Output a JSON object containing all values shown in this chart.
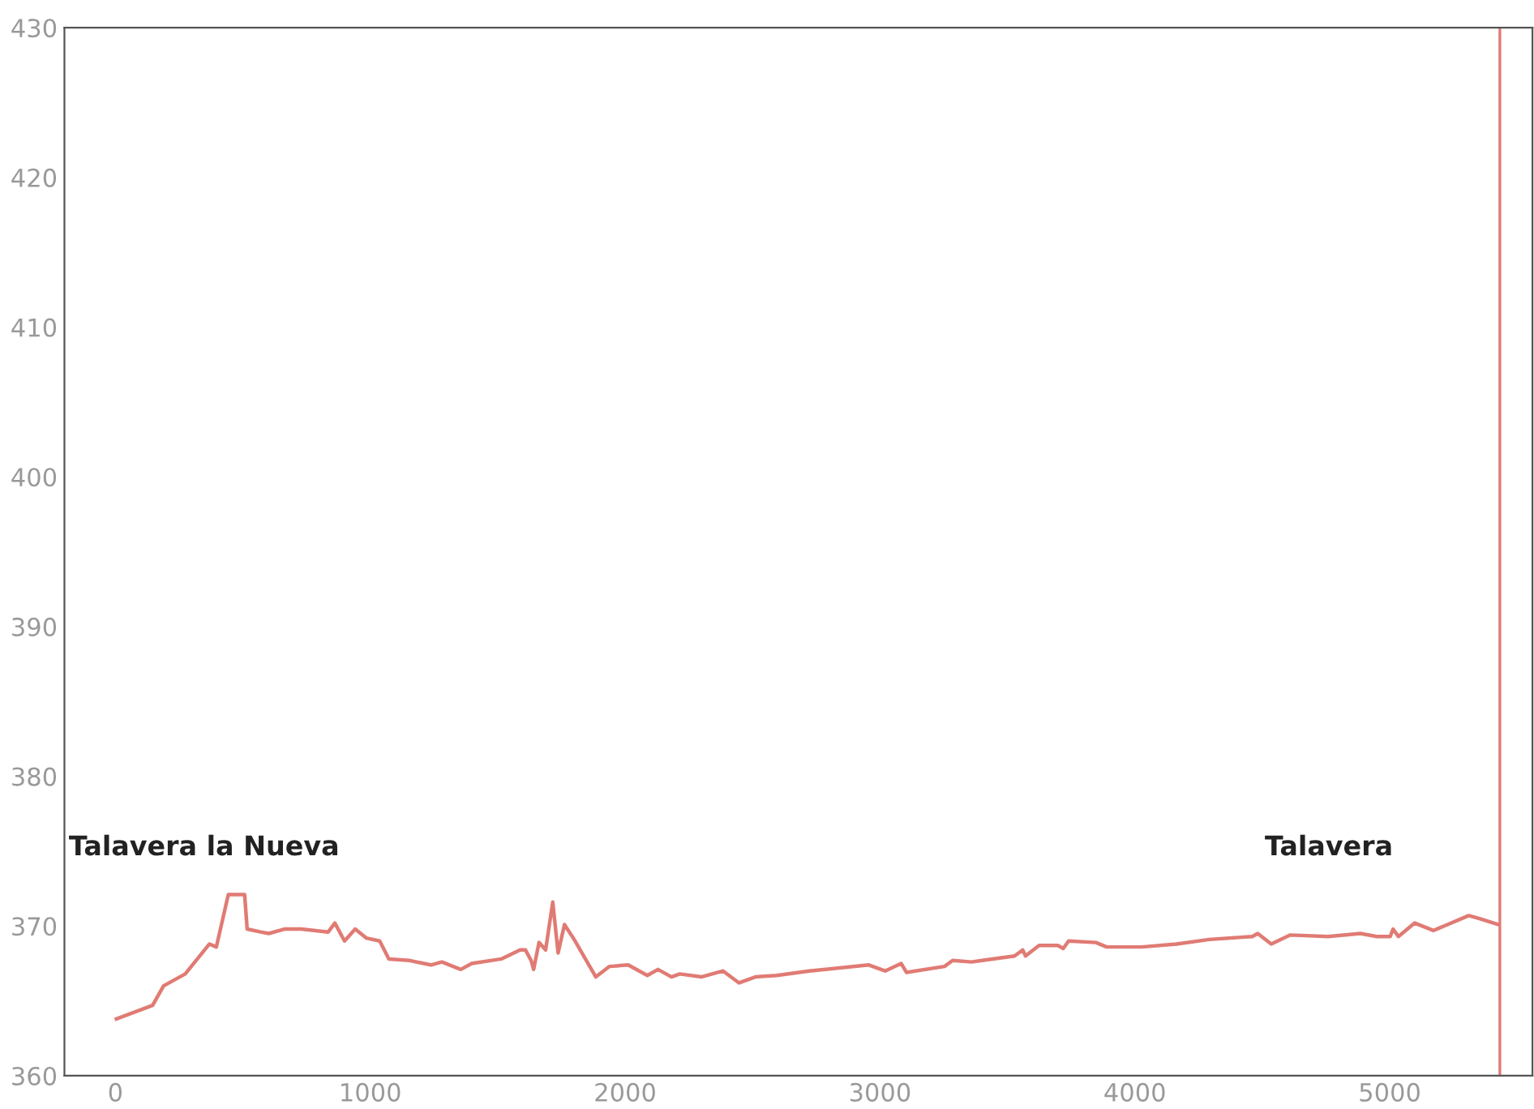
{
  "chart_data": {
    "type": "line",
    "x": [
      4,
      146,
      189,
      274,
      369,
      396,
      443,
      507,
      517,
      570,
      602,
      666,
      729,
      835,
      861,
      899,
      941,
      984,
      1037,
      1073,
      1153,
      1238,
      1281,
      1355,
      1398,
      1514,
      1588,
      1609,
      1631,
      1641,
      1662,
      1688,
      1716,
      1737,
      1762,
      1800,
      1885,
      1938,
      2012,
      2087,
      2129,
      2182,
      2214,
      2299,
      2384,
      2447,
      2511,
      2595,
      2723,
      2956,
      3020,
      3083,
      3104,
      3253,
      3285,
      3359,
      3401,
      3528,
      3560,
      3571,
      3624,
      3698,
      3719,
      3740,
      3847,
      3889,
      4027,
      4164,
      4292,
      4461,
      4482,
      4535,
      4610,
      4758,
      4885,
      4949,
      5002,
      5013,
      5034,
      5098,
      5172,
      5310,
      5352,
      5426
    ],
    "series": [
      {
        "color": "#e07b74",
        "values": [
          363.8,
          364.7,
          366.0,
          366.8,
          368.8,
          368.6,
          372.1,
          372.1,
          369.8,
          369.6,
          369.5,
          369.8,
          369.8,
          369.6,
          370.2,
          369.0,
          369.8,
          369.2,
          369.0,
          367.8,
          367.7,
          367.4,
          367.6,
          367.1,
          367.5,
          367.8,
          368.4,
          368.4,
          367.7,
          367.1,
          368.9,
          368.4,
          371.6,
          368.2,
          370.1,
          369.1,
          366.6,
          367.3,
          367.4,
          366.7,
          367.1,
          366.6,
          366.8,
          366.6,
          367.0,
          366.2,
          366.6,
          366.7,
          367.0,
          367.4,
          367.0,
          367.5,
          366.9,
          367.3,
          367.7,
          367.6,
          367.7,
          368.0,
          368.4,
          368.0,
          368.7,
          368.7,
          368.5,
          369.0,
          368.9,
          368.6,
          368.6,
          368.8,
          369.1,
          369.3,
          369.5,
          368.8,
          369.4,
          369.3,
          369.5,
          369.3,
          369.3,
          369.8,
          369.3,
          370.2,
          369.7,
          370.7,
          370.5,
          370.1
        ]
      }
    ],
    "xlim": [
      -200,
      5560
    ],
    "ylim": [
      360,
      430
    ],
    "xticks": [
      0,
      1000,
      2000,
      3000,
      4000,
      5000
    ],
    "yticks": [
      360,
      370,
      380,
      390,
      400,
      410,
      420,
      430
    ],
    "ref_lines": [
      {
        "axis": "x",
        "value": 5432,
        "color": "#e07b74"
      }
    ],
    "annotations": [
      "Talavera la Nueva",
      "Talavera"
    ],
    "grid": false,
    "legend": false,
    "marker": "none",
    "line_style": "solid"
  }
}
